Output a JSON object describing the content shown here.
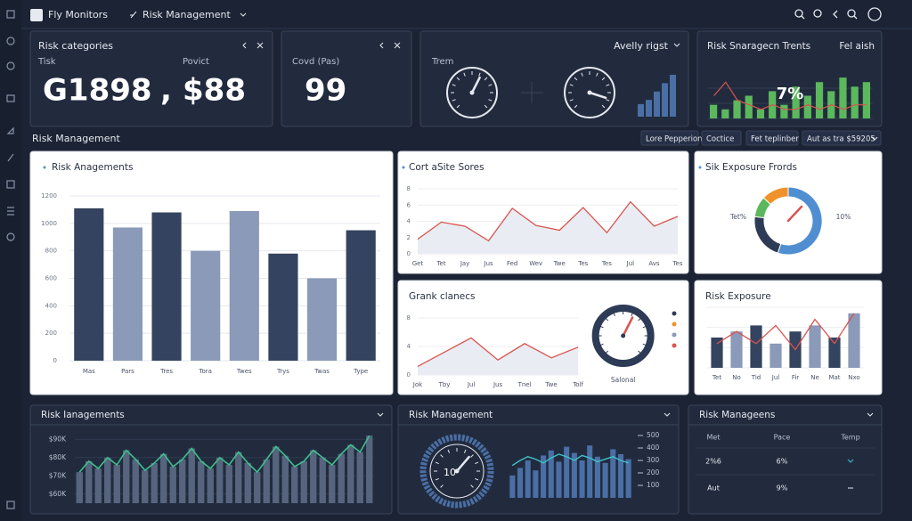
{
  "header": {
    "brand": "Fly Monitors",
    "section": "Risk Management"
  },
  "kpis": [
    {
      "title": "Risk categories",
      "labels": [
        "Tisk",
        "Povict"
      ],
      "values": [
        "G1898",
        ",",
        "$88"
      ]
    },
    {
      "labels": [
        "Covd (Pas)"
      ],
      "values": [
        "99"
      ]
    },
    {
      "title": "Avelly rigst",
      "labels": [
        "Trem"
      ],
      "gauges": [
        60,
        90
      ],
      "gauge_lim": [
        0,
        100
      ],
      "bars": [
        3,
        4,
        6,
        8,
        10
      ],
      "ylim": [
        0,
        10
      ],
      "color": "#4a6fa5"
    },
    {
      "title": "Risk Snaragecn Trents",
      "subtitle": "Fel aish",
      "annotation": "7%",
      "bars": [
        3,
        2,
        4,
        5,
        2,
        6,
        3,
        7,
        5,
        8,
        6,
        9,
        7,
        8
      ],
      "line": [
        5,
        8,
        4,
        3,
        2,
        3,
        2,
        2,
        3,
        2,
        3,
        2,
        3,
        3
      ],
      "ylim": [
        0,
        10
      ],
      "color": "#5cb85c",
      "line_color": "#d9534f"
    }
  ],
  "section": {
    "title": "Risk Management",
    "buttons": [
      "Lore Pepperion",
      "Coctice",
      "Fet teplinber",
      "Aut as tra $59205"
    ]
  },
  "panels": [
    {
      "title": "Risk Anagements",
      "chart": {
        "type": "bar",
        "categories": [
          "Mas",
          "Pars",
          "Tres",
          "Tora",
          "Twes",
          "Trys",
          "Twas",
          "Type"
        ],
        "values": [
          1110,
          970,
          1080,
          800,
          1090,
          780,
          600,
          950
        ],
        "colors": [
          "#34435f",
          "#8a9ab8",
          "#34435f",
          "#8a9ab8",
          "#8a9ab8",
          "#34435f",
          "#8a9ab8",
          "#34435f"
        ],
        "ylim": [
          0,
          1200
        ],
        "yticks": [
          0,
          200,
          400,
          600,
          800,
          1000,
          1200
        ],
        "grid": true
      }
    },
    {
      "title": "Cort aSite Sores",
      "chart": {
        "type": "line",
        "categories": [
          "Get",
          "Tet",
          "Jay",
          "Jus",
          "Fed",
          "Wev",
          "Twe",
          "Tes",
          "Tes",
          "Jul",
          "Avs",
          "Tes"
        ],
        "values": [
          1.8,
          3.9,
          3.4,
          1.6,
          5.6,
          3.5,
          2.9,
          5.7,
          2.6,
          6.4,
          3.4,
          4.6
        ],
        "ylim": [
          0,
          8
        ],
        "yticks": [
          0,
          2,
          4,
          6,
          8
        ],
        "color": "#d9534f"
      }
    },
    {
      "title": "Sik Exposure Frords",
      "chart": {
        "type": "donut",
        "values": [
          55,
          22,
          10,
          13
        ],
        "colors": [
          "#4f8fd1",
          "#2d3b57",
          "#5cb85c",
          "#f0922b"
        ],
        "annotations": [
          "Tet%",
          "10%"
        ]
      }
    },
    {
      "title": "Grank clanecs",
      "chart": {
        "type": "line",
        "categories": [
          "Jok",
          "Tby",
          "Jul",
          "Jus",
          "Tnel",
          "Twe",
          "Tolf"
        ],
        "values": [
          1.2,
          3.2,
          5.2,
          2.1,
          4.4,
          2.4,
          3.9
        ],
        "ylim": [
          0,
          8
        ],
        "yticks": [
          0,
          4,
          8
        ],
        "color": "#d9534f",
        "gauge": 60,
        "gauge_lim": [
          0,
          100
        ],
        "gauge_label": "Salonal",
        "legend_colors": [
          "#2d3b57",
          "#f0922b",
          "#8a9ab8",
          "#d9534f"
        ]
      }
    },
    {
      "title": "Risk Exposure",
      "chart": {
        "type": "combo",
        "categories": [
          "Tet",
          "No",
          "Tid",
          "Jul",
          "Fir",
          "Ne",
          "Mat",
          "Nxo"
        ],
        "values": [
          5,
          6,
          7,
          4,
          6,
          7,
          5,
          9
        ],
        "line": [
          4,
          6,
          4,
          7,
          3,
          8,
          4,
          9
        ],
        "ylim": [
          0,
          10
        ],
        "colors": [
          "#34435f",
          "#8a9ab8"
        ],
        "line_color": "#d9534f"
      }
    },
    {
      "title": "Risk Ianagements",
      "chart": {
        "type": "area",
        "values": [
          72,
          78,
          74,
          80,
          76,
          84,
          79,
          73,
          77,
          82,
          75,
          79,
          85,
          78,
          74,
          80,
          76,
          83,
          77,
          72,
          79,
          86,
          81,
          75,
          78,
          84,
          80,
          76,
          82,
          87,
          83,
          92
        ],
        "ylim": [
          55,
          95
        ],
        "yticks": [
          {
            "value": 60,
            "label": "$60K"
          },
          {
            "value": 70,
            "label": "$70K"
          },
          {
            "value": 80,
            "label": "$80K"
          },
          {
            "value": 90,
            "label": "$90K"
          }
        ],
        "color": "#3fbf8f",
        "bar_color": "#56647e"
      }
    },
    {
      "title": "Risk Management",
      "chart": {
        "type": "gaugebars",
        "gauge": 65,
        "gauge_lim": [
          0,
          100
        ],
        "gauge_label": "10",
        "values": [
          180,
          240,
          300,
          220,
          340,
          380,
          290,
          410,
          360,
          300,
          420,
          330,
          280,
          390,
          350,
          310
        ],
        "line": [
          260,
          300,
          330,
          310,
          280,
          320,
          350,
          330,
          300,
          340,
          320,
          290,
          310,
          330,
          300,
          280
        ],
        "ylim": [
          0,
          500
        ],
        "yticks": [
          100,
          200,
          300,
          400,
          500
        ],
        "color": "#4a6fa5",
        "line_color": "#3fc1c9"
      }
    },
    {
      "title": "Risk Manageens",
      "table": {
        "headers": [
          "Met",
          "Pace",
          "Temp"
        ],
        "rows": [
          [
            "2%6",
            "6%"
          ],
          [
            "Aut",
            "9%"
          ]
        ]
      }
    }
  ]
}
